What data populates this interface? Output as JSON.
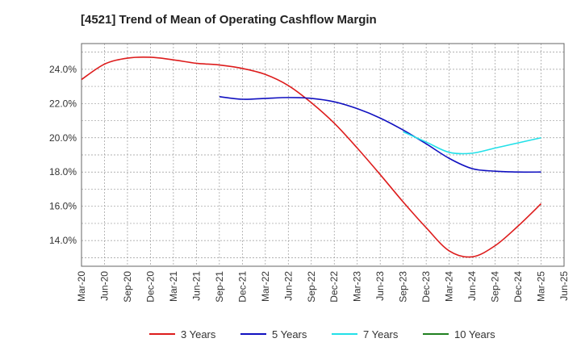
{
  "chart_data": {
    "type": "line",
    "title": "[4521]  Trend of Mean of Operating Cashflow Margin",
    "xlabel": "",
    "ylabel": "",
    "ylim": [
      12.5,
      25.5
    ],
    "y_ticks": [
      14,
      16,
      18,
      20,
      22,
      24
    ],
    "y_tick_labels": [
      "14.0%",
      "16.0%",
      "18.0%",
      "20.0%",
      "22.0%",
      "24.0%"
    ],
    "x_tick_labels": [
      "Mar-20",
      "Jun-20",
      "Sep-20",
      "Dec-20",
      "Mar-21",
      "Jun-21",
      "Sep-21",
      "Dec-21",
      "Mar-22",
      "Jun-22",
      "Sep-22",
      "Dec-22",
      "Mar-23",
      "Jun-23",
      "Sep-23",
      "Dec-23",
      "Mar-24",
      "Jun-24",
      "Sep-24",
      "Dec-24",
      "Mar-25",
      "Jun-25"
    ],
    "grid": true,
    "legend_position": "bottom",
    "series": [
      {
        "name": "3 Years",
        "color": "#dd1c1c",
        "start_index": 0,
        "values": [
          23.4,
          24.3,
          24.65,
          24.7,
          24.55,
          24.35,
          24.25,
          24.05,
          23.7,
          23.05,
          22.05,
          20.85,
          19.4,
          17.85,
          16.25,
          14.75,
          13.4,
          13.05,
          13.7,
          14.85,
          16.15
        ]
      },
      {
        "name": "5 Years",
        "color": "#1010c0",
        "start_index": 6,
        "values": [
          22.4,
          22.25,
          22.3,
          22.35,
          22.3,
          22.1,
          21.7,
          21.15,
          20.45,
          19.65,
          18.8,
          18.2,
          18.05,
          18.0,
          18.0
        ]
      },
      {
        "name": "7 Years",
        "color": "#22e0e8",
        "start_index": 14,
        "values": [
          20.35,
          19.75,
          19.15,
          19.1,
          19.4,
          19.7,
          20.0
        ]
      },
      {
        "name": "10 Years",
        "color": "#208020",
        "start_index": 0,
        "values": []
      }
    ]
  }
}
